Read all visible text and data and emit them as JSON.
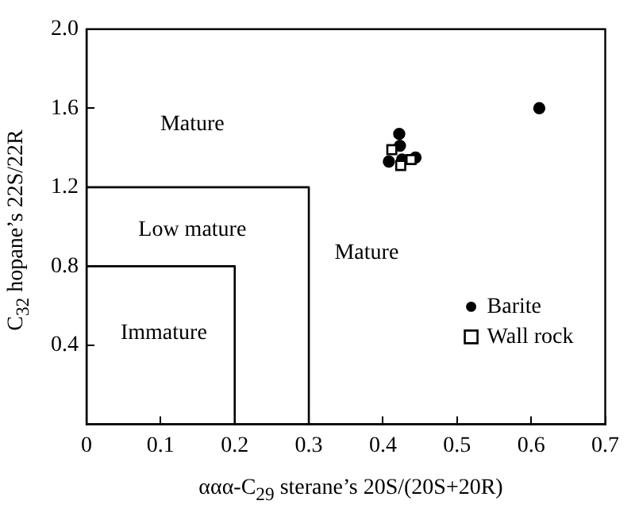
{
  "chart_data": {
    "type": "scatter",
    "xlabel": "ααα-C$_{29}$ sterane’s 20S/(20S+20R)",
    "ylabel": "C$_{32}$ hopane’s 22S/22R",
    "xlim": [
      0,
      0.7
    ],
    "xticks": [
      0,
      0.1,
      0.2,
      0.3,
      0.4,
      0.5,
      0.6,
      0.7
    ],
    "ylim": [
      0,
      2
    ],
    "yticks": [
      {
        "value": 0,
        "label": null
      },
      0.4,
      0.8,
      1.2,
      1.6,
      {
        "value": 2,
        "label": "2.0"
      }
    ],
    "grid": false,
    "legend": "bottom right",
    "series": [
      {
        "name": "Barite",
        "type": "scatter",
        "marker": "circle",
        "color": "#000000",
        "x": [
          0.408,
          0.422,
          0.423,
          0.426,
          0.444,
          0.611
        ],
        "values": [
          1.33,
          1.47,
          1.41,
          1.34,
          1.35,
          1.6
        ]
      },
      {
        "name": "Wall rock",
        "type": "scatter",
        "marker": "square",
        "color": "#000000",
        "x": [
          0.412,
          0.424,
          0.438
        ],
        "values": [
          1.39,
          1.31,
          1.34
        ]
      },
      {
        "type": "line",
        "marker": "none",
        "line_style": "solid",
        "color": "#000000",
        "x": [
          0,
          0.3,
          0.3
        ],
        "values": [
          1.2,
          1.2,
          0
        ]
      },
      {
        "type": "line",
        "marker": "none",
        "line_style": "solid",
        "color": "#000000",
        "x": [
          0,
          0.2,
          0.2
        ],
        "values": [
          0.8,
          0.8,
          0
        ]
      }
    ],
    "annotations": [
      "Mature",
      "Low mature",
      "Mature",
      "Immature"
    ]
  }
}
